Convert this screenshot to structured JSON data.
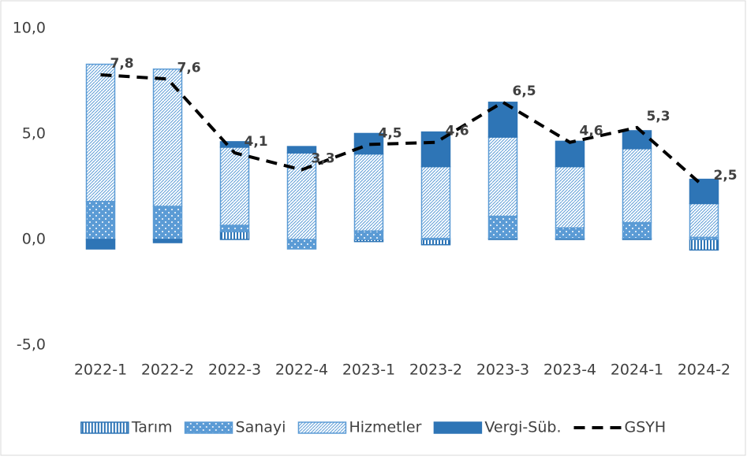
{
  "chart_data": {
    "type": "stacked-bar-line",
    "categories": [
      "2022-1",
      "2022-2",
      "2022-3",
      "2022-4",
      "2023-1",
      "2023-2",
      "2023-3",
      "2023-4",
      "2024-1",
      "2024-2"
    ],
    "series": [
      {
        "name": "Tarım",
        "color": "#2e75b6",
        "type": "bar",
        "values": [
          0,
          0,
          0.37,
          0,
          -0.1,
          -0.25,
          0.05,
          0.05,
          0.05,
          -0.5
        ]
      },
      {
        "name": "Sanayi",
        "color": "#5b9bd5",
        "type": "bar",
        "values": [
          1.8,
          1.57,
          0.3,
          -0.45,
          0.4,
          0.05,
          1.05,
          0.5,
          0.75,
          0.1
        ]
      },
      {
        "name": "Hizmetler",
        "color": "#5b9bd5",
        "type": "bar",
        "values": [
          6.5,
          6.5,
          3.7,
          4.1,
          3.65,
          3.4,
          3.75,
          2.9,
          3.5,
          1.6
        ]
      },
      {
        "name": "Vergi-Süb.",
        "color": "#2e75b6",
        "type": "bar",
        "values": [
          -0.45,
          -0.15,
          0.26,
          0.3,
          0.97,
          1.64,
          1.65,
          1.2,
          0.85,
          1.15
        ]
      },
      {
        "name": "GSYH",
        "color": "#000000",
        "type": "line",
        "values": [
          7.8,
          7.6,
          4.1,
          3.3,
          4.5,
          4.6,
          6.5,
          4.6,
          5.3,
          2.5
        ],
        "value_labels": [
          "7,8",
          "7,6",
          "4,1",
          "3,3",
          "4,5",
          "4,6",
          "6,5",
          "4,6",
          "5,3",
          "2,5"
        ]
      }
    ],
    "ylim": [
      -5,
      10
    ],
    "yticks": [
      {
        "value": -5,
        "label": "-5,0"
      },
      {
        "value": 0,
        "label": "0,0"
      },
      {
        "value": 5,
        "label": "5,0"
      },
      {
        "value": 10,
        "label": "10,0"
      }
    ],
    "grid": false,
    "legend": "bottom"
  }
}
